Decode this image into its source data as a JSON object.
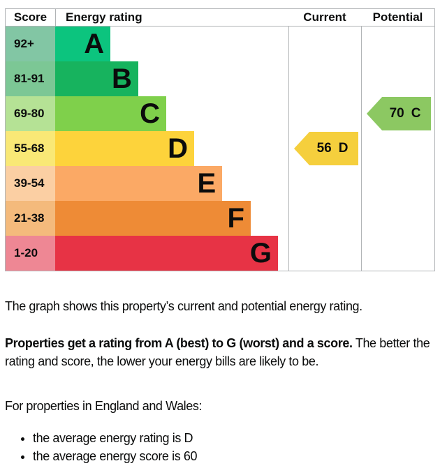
{
  "chart_data": {
    "type": "bar",
    "title": "Energy efficiency rating graph",
    "columns": [
      "Score",
      "Energy rating",
      "Current",
      "Potential"
    ],
    "bands": [
      {
        "score_range": "92+",
        "letter": "A",
        "bar_color": "#0cc47e",
        "score_bg": "#82c6a4",
        "width_pct": 23.7
      },
      {
        "score_range": "81-91",
        "letter": "B",
        "bar_color": "#17b35e",
        "score_bg": "#7cc795",
        "width_pct": 35.6
      },
      {
        "score_range": "69-80",
        "letter": "C",
        "bar_color": "#7fd04b",
        "score_bg": "#b5e295",
        "width_pct": 47.6
      },
      {
        "score_range": "55-68",
        "letter": "D",
        "bar_color": "#fdd33b",
        "score_bg": "#f9e876",
        "width_pct": 59.6
      },
      {
        "score_range": "39-54",
        "letter": "E",
        "bar_color": "#fba965",
        "score_bg": "#fbcfa3",
        "width_pct": 71.6
      },
      {
        "score_range": "21-38",
        "letter": "F",
        "bar_color": "#ee8b36",
        "score_bg": "#f4ba7c",
        "width_pct": 83.8
      },
      {
        "score_range": "1-20",
        "letter": "G",
        "bar_color": "#e73345",
        "score_bg": "#ee8794",
        "width_pct": 95.5
      }
    ],
    "current": {
      "score": "56",
      "letter": "D",
      "color": "#f5cf3d",
      "band_index": 3
    },
    "potential": {
      "score": "70",
      "letter": "C",
      "color": "#8cc862",
      "band_index": 2
    }
  },
  "text": {
    "intro": "The graph shows this property’s current and potential energy rating.",
    "rating_bold": "Properties get a rating from A (best) to G (worst) and a score.",
    "rating_rest": "The better the rating and score, the lower your energy bills are likely to be.",
    "region_line": "For properties in England and Wales:",
    "bullets": [
      "the average energy rating is D",
      "the average energy score is 60"
    ]
  }
}
